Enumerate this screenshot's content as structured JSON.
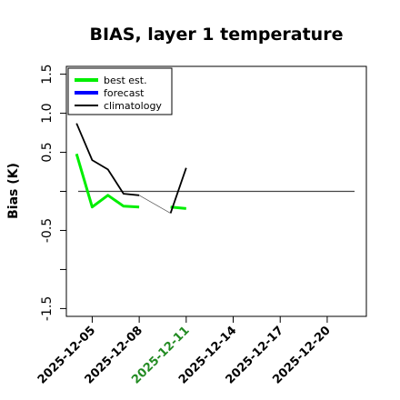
{
  "chart_data": {
    "type": "line",
    "title": "BIAS, layer 1 temperature",
    "xlabel": "",
    "ylabel": "Bias (K)",
    "ylim": [
      -1.6,
      1.6
    ],
    "xlim": [
      "2025-12-04",
      "2025-12-22"
    ],
    "y_ticks": [
      -1.5,
      -1.0,
      -0.5,
      0.0,
      0.5,
      1.0,
      1.5
    ],
    "y_tick_labels": [
      "-1.5",
      "",
      "-0.5",
      "",
      "0.5",
      "1.0",
      "1.5"
    ],
    "x_ticks": [
      "2025-12-05",
      "2025-12-08",
      "2025-12-11",
      "2025-12-14",
      "2025-12-17",
      "2025-12-20"
    ],
    "x_tick_colors": [
      "#000000",
      "#000000",
      "#228b22",
      "#000000",
      "#000000",
      "#000000"
    ],
    "reference_line": 0,
    "legend_position": "top-left",
    "series": [
      {
        "name": "best est.",
        "color": "#00ee00",
        "width": 3,
        "points": [
          {
            "x": "2025-12-04",
            "y": 0.48
          },
          {
            "x": "2025-12-05",
            "y": -0.2
          },
          {
            "x": "2025-12-06",
            "y": -0.05
          },
          {
            "x": "2025-12-07",
            "y": -0.19
          },
          {
            "x": "2025-12-08",
            "y": -0.2
          }
        ]
      },
      {
        "name": "best est.",
        "color": "#00ee00",
        "width": 3,
        "points": [
          {
            "x": "2025-12-10",
            "y": -0.2
          },
          {
            "x": "2025-12-11",
            "y": -0.22
          }
        ]
      },
      {
        "name": "forecast",
        "color": "#0000ff",
        "width": 3,
        "points": []
      },
      {
        "name": "climatology",
        "color": "#000000",
        "width": 1.8,
        "points": [
          {
            "x": "2025-12-04",
            "y": 0.87
          },
          {
            "x": "2025-12-05",
            "y": 0.4
          },
          {
            "x": "2025-12-06",
            "y": 0.28
          },
          {
            "x": "2025-12-07",
            "y": -0.03
          },
          {
            "x": "2025-12-08",
            "y": -0.05
          }
        ]
      },
      {
        "name": "climatology",
        "color": "#000000",
        "width": 1.8,
        "points": [
          {
            "x": "2025-12-10",
            "y": -0.28
          },
          {
            "x": "2025-12-11",
            "y": 0.3
          }
        ]
      },
      {
        "name": "climatology",
        "color": "#555555",
        "width": 0.7,
        "points": [
          {
            "x": "2025-12-08",
            "y": -0.05
          },
          {
            "x": "2025-12-10",
            "y": -0.28
          }
        ]
      }
    ],
    "legend": [
      {
        "label": "best est.",
        "color": "#00ee00"
      },
      {
        "label": "forecast",
        "color": "#0000ff"
      },
      {
        "label": "climatology",
        "color": "#000000"
      }
    ]
  }
}
